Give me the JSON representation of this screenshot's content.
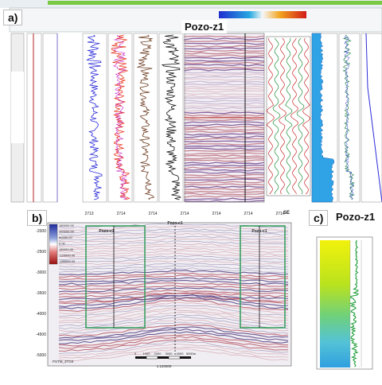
{
  "panel_a": {
    "label": "a)",
    "well_name": "Pozo-z1",
    "toolbar_left_text": "",
    "accent_colors": [
      "#7ac943",
      "#2b2bd8",
      "#e8341c",
      "#6a1f8f"
    ]
  },
  "panel_b": {
    "label": "b)",
    "well_label_left": "Pozo-c1",
    "well_label_center": "Pozo-c1",
    "well_label_right": "Pozo-c1",
    "section_name": "PSTM_3TG0",
    "scale_text": "1:120000",
    "scale_ticks": [
      "0",
      "1000",
      "2000",
      "3000",
      "4000",
      "5000m"
    ],
    "y_ticks": [
      "-2000",
      "-2500",
      "-3000",
      "-3500",
      "-4000",
      "-4500",
      "-5000"
    ],
    "legend_values": [
      "180000.00",
      "120000.00",
      "60000.00",
      "0.00",
      "-60000.00",
      "-120000.00",
      "-180000.00"
    ],
    "top_x_labels": [
      "2713",
      "2714",
      "2714",
      "2714",
      "2714",
      "2714",
      "2714"
    ],
    "corner_tag": "SE"
  },
  "panel_c": {
    "label": "c)",
    "well_name": "Pozo-z1"
  }
}
